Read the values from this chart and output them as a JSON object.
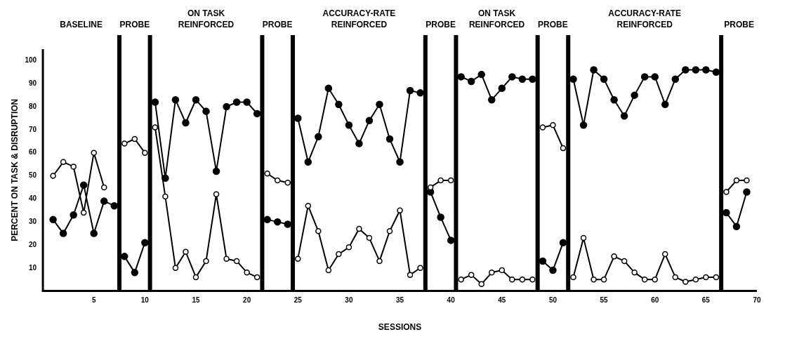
{
  "chart_data": {
    "type": "line",
    "xlabel": "SESSIONS",
    "ylabel": "PERCENT ON TASK & DISRUPTION",
    "x": [
      1,
      2,
      3,
      4,
      5,
      6,
      7,
      7.5,
      8,
      9,
      10,
      10.5,
      11,
      12,
      13,
      14,
      15,
      16,
      17,
      18,
      19,
      20,
      21,
      21.5,
      22,
      23,
      24,
      24.5,
      25,
      26,
      27,
      28,
      29,
      30,
      31,
      32,
      33,
      34,
      35,
      36,
      37,
      37.5,
      38,
      39,
      40,
      40.5,
      41,
      42,
      43,
      44,
      45,
      46,
      47,
      48,
      48.5,
      49,
      50,
      51,
      51.5,
      52,
      53,
      54,
      55,
      56,
      57,
      58,
      59,
      60,
      61,
      62,
      63,
      64,
      65,
      66,
      66.5,
      67,
      68,
      69
    ],
    "series": [
      {
        "color": "#000000",
        "values": [
          50,
          56,
          54,
          34,
          60,
          45,
          null,
          null,
          64,
          66,
          60,
          null,
          71,
          41,
          10,
          17,
          6,
          13,
          42,
          14,
          13,
          8,
          6,
          null,
          51,
          48,
          47,
          null,
          14,
          37,
          26,
          9,
          16,
          19,
          27,
          23,
          13,
          26,
          35,
          7,
          10,
          null,
          45,
          48,
          48,
          null,
          5,
          7,
          3,
          8,
          9,
          5,
          5,
          5,
          null,
          71,
          72,
          62,
          null,
          6,
          23,
          5,
          5,
          15,
          13,
          8,
          5,
          5,
          16,
          6,
          4,
          5,
          6,
          6,
          null,
          43,
          48,
          48
        ]
      },
      {
        "color": "#000000",
        "values": [
          31,
          25,
          33,
          46,
          25,
          39,
          37,
          null,
          15,
          8,
          21,
          null,
          82,
          49,
          83,
          73,
          83,
          78,
          52,
          80,
          82,
          82,
          77,
          null,
          31,
          30,
          29,
          null,
          75,
          56,
          67,
          88,
          81,
          72,
          64,
          74,
          81,
          66,
          56,
          87,
          86,
          null,
          43,
          32,
          22,
          null,
          93,
          91,
          94,
          83,
          88,
          93,
          92,
          92,
          null,
          13,
          9,
          21,
          null,
          92,
          72,
          96,
          92,
          83,
          76,
          85,
          93,
          93,
          81,
          92,
          96,
          96,
          96,
          95,
          null,
          34,
          28,
          43
        ]
      }
    ],
    "xlim": [
      0,
      70
    ],
    "xticks": [
      5,
      10,
      15,
      20,
      25,
      30,
      35,
      40,
      45,
      50,
      55,
      60,
      65,
      70
    ],
    "ylim": [
      0,
      105
    ],
    "yticks": [
      10,
      20,
      30,
      40,
      50,
      60,
      70,
      80,
      90,
      100
    ],
    "grid": false,
    "legend": false,
    "marker": "circle",
    "line_style": "solid",
    "ref_lines": [
      {
        "axis": "x",
        "value": 7.5
      },
      {
        "axis": "x",
        "value": 10.5
      },
      {
        "axis": "x",
        "value": 21.5
      },
      {
        "axis": "x",
        "value": 24.5
      },
      {
        "axis": "x",
        "value": 37.5
      },
      {
        "axis": "x",
        "value": 40.5
      },
      {
        "axis": "x",
        "value": 48.5
      },
      {
        "axis": "x",
        "value": 51.5
      },
      {
        "axis": "x",
        "value": 66.5
      }
    ],
    "annotations": [
      "BASELINE",
      "PROBE",
      "ON TASK\nREINFORCED",
      "PROBE",
      "ACCURACY-RATE\nREINFORCED",
      "PROBE",
      "ON TASK\nREINFORCED",
      "PROBE",
      "ACCURACY-RATE\nREINFORCED",
      "PROBE"
    ]
  }
}
